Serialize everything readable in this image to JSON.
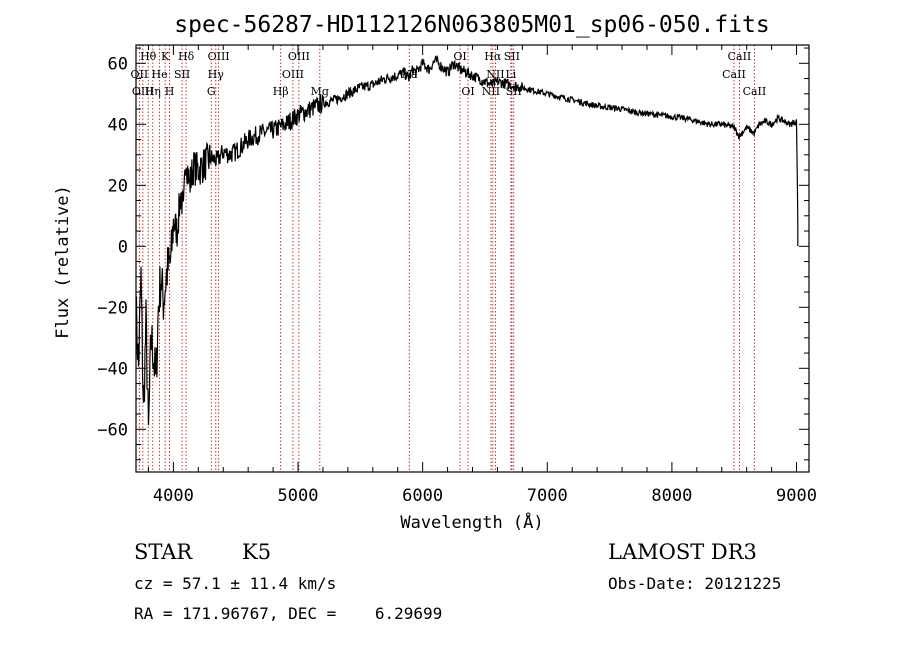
{
  "chart_data": {
    "type": "line",
    "title": "spec-56287-HD112126N063805M01_sp06-050.fits",
    "xlabel": "Wavelength (Å)",
    "ylabel": "Flux (relative)",
    "xlim": [
      3700,
      9100
    ],
    "ylim": [
      -74,
      66
    ],
    "x_ticks": [
      4000,
      5000,
      6000,
      7000,
      8000,
      9000
    ],
    "y_ticks": [
      -60,
      -40,
      -20,
      0,
      20,
      40,
      60
    ],
    "x_tick_labels": [
      "4000",
      "5000",
      "6000",
      "7000",
      "8000",
      "9000"
    ],
    "y_tick_labels": [
      "−60",
      "−40",
      "−20",
      "0",
      "20",
      "40",
      "60"
    ],
    "series": [
      {
        "name": "flux",
        "x": [
          3700,
          3720,
          3740,
          3760,
          3780,
          3800,
          3820,
          3840,
          3860,
          3880,
          3900,
          3920,
          3950,
          3980,
          4000,
          4030,
          4060,
          4080,
          4100,
          4130,
          4160,
          4200,
          4250,
          4300,
          4350,
          4400,
          4450,
          4500,
          4600,
          4700,
          4800,
          4900,
          5000,
          5100,
          5200,
          5300,
          5400,
          5500,
          5600,
          5700,
          5800,
          5850,
          5890,
          5920,
          5950,
          6000,
          6050,
          6100,
          6150,
          6200,
          6250,
          6300,
          6350,
          6400,
          6450,
          6500,
          6560,
          6600,
          6700,
          6800,
          6900,
          7000,
          7100,
          7200,
          7300,
          7400,
          7500,
          7600,
          7700,
          7800,
          7900,
          8000,
          8100,
          8200,
          8300,
          8400,
          8500,
          8540,
          8600,
          8660,
          8700,
          8750,
          8800,
          8850,
          8900,
          8950,
          9000,
          9010
        ],
        "y": [
          -20,
          -40,
          -10,
          -55,
          -25,
          -62,
          -30,
          -35,
          -45,
          -20,
          -10,
          -18,
          -8,
          -5,
          8,
          5,
          18,
          10,
          30,
          20,
          26,
          25,
          27,
          29,
          28,
          31,
          30,
          31,
          35,
          37,
          38,
          40,
          43,
          45,
          47,
          48,
          50,
          52,
          53,
          55,
          56,
          57,
          55,
          58,
          57,
          60,
          58,
          61,
          59,
          57,
          60,
          58,
          57,
          56,
          55,
          54,
          53,
          54,
          53,
          52,
          51,
          50,
          49,
          48,
          47,
          46,
          45.5,
          45,
          44,
          43.5,
          43,
          42.5,
          42,
          41,
          40,
          40,
          39,
          36,
          39,
          37,
          40,
          41,
          40,
          42,
          41,
          40,
          41,
          8
        ]
      }
    ],
    "emission_lines": [
      {
        "label": "Hθ",
        "wavelength": 3798,
        "row": 1
      },
      {
        "label": "OII",
        "wavelength": 3727,
        "row": 2
      },
      {
        "label": "OIII",
        "wavelength": 3755,
        "row": 3
      },
      {
        "label": "K",
        "wavelength": 3934,
        "row": 1
      },
      {
        "label": "He",
        "wavelength": 3889,
        "row": 2
      },
      {
        "label": "Hη",
        "wavelength": 3835,
        "row": 3
      },
      {
        "label": "Hδ",
        "wavelength": 4102,
        "row": 1
      },
      {
        "label": "SII",
        "wavelength": 4070,
        "row": 2
      },
      {
        "label": "H",
        "wavelength": 3969,
        "row": 3
      },
      {
        "label": "OIII",
        "wavelength": 4363,
        "row": 1
      },
      {
        "label": "Hγ",
        "wavelength": 4340,
        "row": 2
      },
      {
        "label": "G",
        "wavelength": 4304,
        "row": 3
      },
      {
        "label": "OIII",
        "wavelength": 5007,
        "row": 1
      },
      {
        "label": "OIII",
        "wavelength": 4959,
        "row": 2
      },
      {
        "label": "Hβ",
        "wavelength": 4861,
        "row": 3
      },
      {
        "label": "Mg",
        "wavelength": 5175,
        "row": 3
      },
      {
        "label": "Na",
        "wavelength": 5893,
        "row": 2
      },
      {
        "label": "OI",
        "wavelength": 6300,
        "row": 1
      },
      {
        "label": "OI",
        "wavelength": 6364,
        "row": 3
      },
      {
        "label": "Hα",
        "wavelength": 6563,
        "row": 1
      },
      {
        "label": "SII",
        "wavelength": 6716,
        "row": 1
      },
      {
        "label": "NII",
        "wavelength": 6584,
        "row": 2
      },
      {
        "label": "Li",
        "wavelength": 6708,
        "row": 2
      },
      {
        "label": "NII",
        "wavelength": 6548,
        "row": 3
      },
      {
        "label": "SII",
        "wavelength": 6731,
        "row": 3
      },
      {
        "label": "CaII",
        "wavelength": 8542,
        "row": 1
      },
      {
        "label": "CaII",
        "wavelength": 8498,
        "row": 2
      },
      {
        "label": "CaII",
        "wavelength": 8662,
        "row": 3
      }
    ]
  },
  "info": {
    "object_class": "STAR",
    "subclass": "K5",
    "redshift": "cz = 57.1 ± 11.4 km/s",
    "coords": "RA = 171.96767, DEC =    6.29699",
    "survey": "LAMOST DR3",
    "obs_date": "Obs-Date: 20121225"
  },
  "colors": {
    "spectrum": "#000000",
    "line_marker": "#b22222"
  }
}
